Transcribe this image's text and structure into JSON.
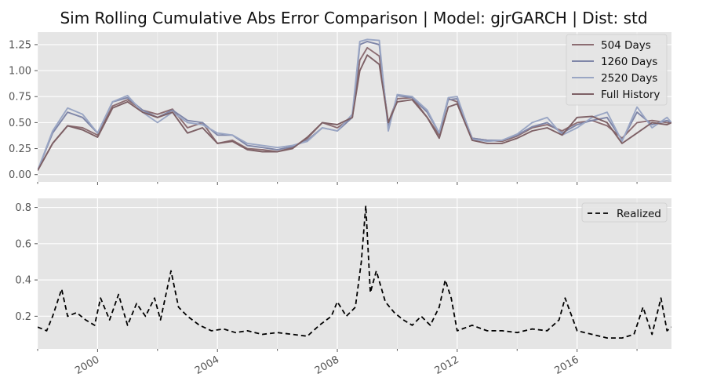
{
  "figure": {
    "title": "Sim Rolling Cumulative Abs Error Comparison | Model: gjrGARCH | Dist: std"
  },
  "chart_data": [
    {
      "type": "line",
      "title": "",
      "xlabel": "",
      "ylabel": "",
      "x_type": "year",
      "xlim": [
        1998.0,
        2019.15
      ],
      "ylim": [
        -0.07,
        1.37
      ],
      "grid": true,
      "legend_position": "top-right",
      "yticks": [
        "0.00",
        "0.25",
        "0.50",
        "0.75",
        "1.00",
        "1.25"
      ],
      "x": [
        1998.0,
        1998.5,
        1999.0,
        1999.5,
        2000.0,
        2000.5,
        2001.0,
        2001.5,
        2002.0,
        2002.5,
        2003.0,
        2003.5,
        2004.0,
        2004.5,
        2005.0,
        2005.5,
        2006.0,
        2006.5,
        2007.0,
        2007.5,
        2008.0,
        2008.5,
        2008.75,
        2009.0,
        2009.4,
        2009.7,
        2010.0,
        2010.5,
        2011.0,
        2011.4,
        2011.7,
        2012.0,
        2012.5,
        2013.0,
        2013.5,
        2014.0,
        2014.5,
        2015.0,
        2015.5,
        2016.0,
        2016.5,
        2017.0,
        2017.5,
        2018.0,
        2018.5,
        2019.0,
        2019.15
      ],
      "series": [
        {
          "name": "504 Days",
          "color": "#8c6d72",
          "values": [
            0.04,
            0.3,
            0.47,
            0.45,
            0.38,
            0.66,
            0.72,
            0.62,
            0.58,
            0.63,
            0.45,
            0.5,
            0.3,
            0.33,
            0.25,
            0.24,
            0.22,
            0.26,
            0.35,
            0.5,
            0.45,
            0.55,
            1.1,
            1.22,
            1.14,
            0.5,
            0.73,
            0.74,
            0.55,
            0.38,
            0.73,
            0.7,
            0.35,
            0.33,
            0.32,
            0.37,
            0.45,
            0.48,
            0.42,
            0.5,
            0.52,
            0.47,
            0.35,
            0.5,
            0.52,
            0.5,
            0.5
          ]
        },
        {
          "name": "1260 Days",
          "color": "#7f86a8",
          "values": [
            0.04,
            0.4,
            0.6,
            0.55,
            0.4,
            0.7,
            0.74,
            0.62,
            0.55,
            0.62,
            0.52,
            0.5,
            0.38,
            0.38,
            0.28,
            0.26,
            0.24,
            0.27,
            0.33,
            0.45,
            0.42,
            0.55,
            1.25,
            1.28,
            1.25,
            0.45,
            0.76,
            0.74,
            0.6,
            0.4,
            0.72,
            0.73,
            0.35,
            0.33,
            0.33,
            0.38,
            0.46,
            0.5,
            0.4,
            0.48,
            0.52,
            0.55,
            0.33,
            0.6,
            0.48,
            0.52,
            0.5
          ]
        },
        {
          "name": "2520 Days",
          "color": "#9aa6c4",
          "values": [
            0.04,
            0.42,
            0.64,
            0.58,
            0.4,
            0.7,
            0.76,
            0.6,
            0.5,
            0.6,
            0.5,
            0.48,
            0.4,
            0.38,
            0.3,
            0.28,
            0.26,
            0.28,
            0.32,
            0.45,
            0.42,
            0.58,
            1.28,
            1.3,
            1.29,
            0.42,
            0.77,
            0.75,
            0.62,
            0.4,
            0.74,
            0.75,
            0.34,
            0.32,
            0.33,
            0.39,
            0.5,
            0.55,
            0.38,
            0.45,
            0.55,
            0.6,
            0.32,
            0.65,
            0.45,
            0.55,
            0.5
          ]
        },
        {
          "name": "Full History",
          "color": "#7d6065",
          "values": [
            0.04,
            0.3,
            0.47,
            0.43,
            0.36,
            0.64,
            0.7,
            0.6,
            0.55,
            0.6,
            0.4,
            0.45,
            0.3,
            0.32,
            0.24,
            0.22,
            0.22,
            0.25,
            0.36,
            0.5,
            0.48,
            0.55,
            1.0,
            1.15,
            1.06,
            0.5,
            0.7,
            0.72,
            0.55,
            0.35,
            0.65,
            0.68,
            0.33,
            0.3,
            0.3,
            0.35,
            0.42,
            0.45,
            0.38,
            0.55,
            0.56,
            0.5,
            0.3,
            0.4,
            0.5,
            0.48,
            0.5
          ]
        }
      ]
    },
    {
      "type": "line",
      "title": "",
      "xlabel": "",
      "ylabel": "",
      "x_type": "year",
      "xlim": [
        1998.0,
        2019.15
      ],
      "ylim": [
        0.02,
        0.85
      ],
      "grid": true,
      "legend_position": "top-right",
      "yticks": [
        "0.2",
        "0.4",
        "0.6",
        "0.8"
      ],
      "xticks": [
        "2000",
        "2004",
        "2008",
        "2012",
        "2016"
      ],
      "x": [
        1998.0,
        1998.3,
        1998.5,
        1998.8,
        1999.0,
        1999.3,
        1999.6,
        1999.9,
        2000.1,
        2000.4,
        2000.7,
        2001.0,
        2001.3,
        2001.6,
        2001.9,
        2002.1,
        2002.45,
        2002.7,
        2003.0,
        2003.4,
        2003.8,
        2004.2,
        2004.6,
        2005.0,
        2005.5,
        2006.0,
        2006.5,
        2007.0,
        2007.4,
        2007.8,
        2008.0,
        2008.3,
        2008.6,
        2008.8,
        2008.95,
        2009.1,
        2009.3,
        2009.6,
        2009.9,
        2010.2,
        2010.5,
        2010.8,
        2011.1,
        2011.4,
        2011.6,
        2011.8,
        2012.0,
        2012.5,
        2013.0,
        2013.5,
        2014.0,
        2014.5,
        2015.0,
        2015.4,
        2015.6,
        2016.0,
        2016.5,
        2017.0,
        2017.5,
        2017.9,
        2018.2,
        2018.5,
        2018.8,
        2019.0,
        2019.15
      ],
      "series": [
        {
          "name": "Realized",
          "color": "#000000",
          "values": [
            0.14,
            0.12,
            0.2,
            0.35,
            0.2,
            0.22,
            0.18,
            0.15,
            0.3,
            0.18,
            0.32,
            0.15,
            0.27,
            0.2,
            0.3,
            0.18,
            0.45,
            0.25,
            0.2,
            0.15,
            0.12,
            0.13,
            0.11,
            0.12,
            0.1,
            0.11,
            0.1,
            0.09,
            0.15,
            0.2,
            0.28,
            0.2,
            0.25,
            0.5,
            0.81,
            0.33,
            0.45,
            0.28,
            0.22,
            0.18,
            0.15,
            0.2,
            0.15,
            0.25,
            0.4,
            0.3,
            0.12,
            0.15,
            0.12,
            0.12,
            0.11,
            0.13,
            0.12,
            0.18,
            0.3,
            0.12,
            0.1,
            0.08,
            0.08,
            0.1,
            0.25,
            0.1,
            0.3,
            0.12,
            0.14
          ]
        }
      ]
    }
  ]
}
